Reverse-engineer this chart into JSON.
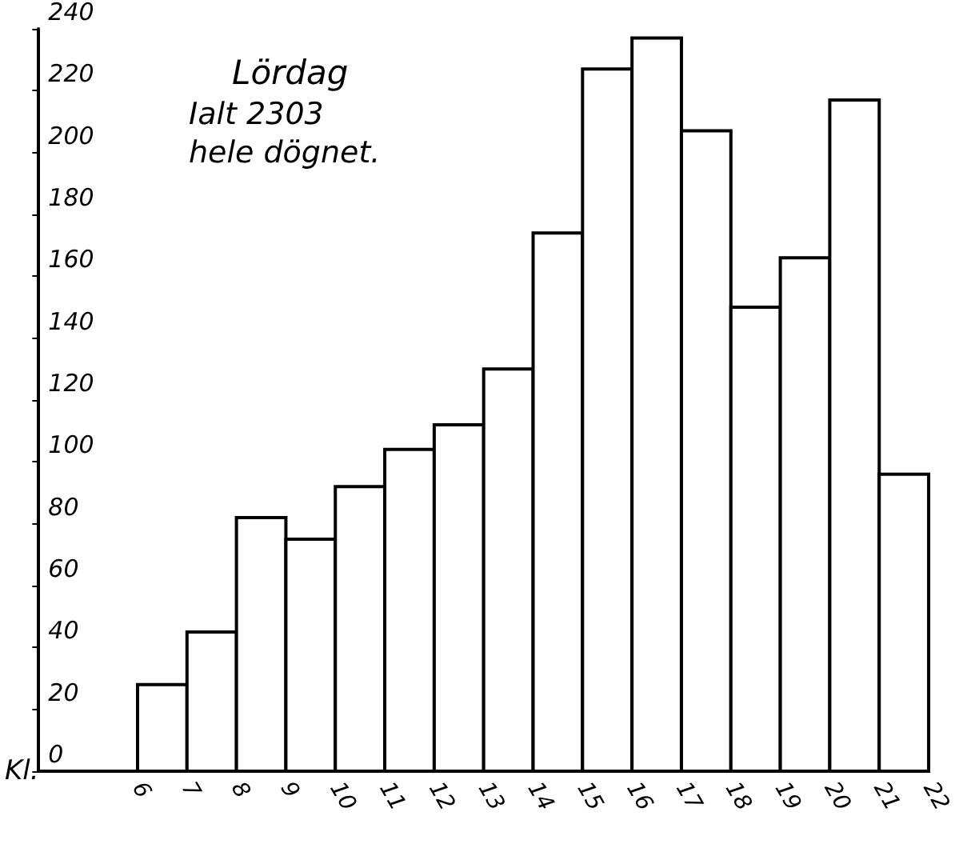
{
  "chart_data": {
    "type": "histogram",
    "title": "Lördag",
    "xlabel": "Kl.",
    "annotations": [
      "Ialt 2303",
      "hele dögnet."
    ],
    "bins": [
      6,
      7,
      8,
      9,
      10,
      11,
      12,
      13,
      14,
      15,
      16,
      17,
      18,
      19,
      20,
      21,
      22
    ],
    "values": [
      28,
      45,
      82,
      75,
      92,
      104,
      112,
      130,
      174,
      227,
      237,
      207,
      150,
      166,
      217,
      96
    ],
    "color": "#ffffff",
    "xlim": [
      4,
      22
    ],
    "xticks": [
      6,
      7,
      8,
      9,
      10,
      11,
      12,
      13,
      14,
      15,
      16,
      17,
      18,
      19,
      20,
      21,
      22
    ],
    "ylim": [
      0,
      240
    ],
    "yticks": [
      0,
      20,
      40,
      60,
      80,
      100,
      120,
      140,
      160,
      180,
      200,
      220,
      240
    ],
    "grid": false
  }
}
